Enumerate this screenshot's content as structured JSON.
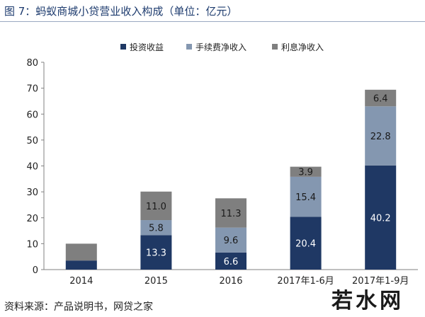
{
  "figure": {
    "title": "图 7：蚂蚁商城小贷营业收入构成（单位：亿元）",
    "source": "资料来源：产品说明书，网贷之家",
    "watermark": "若水网"
  },
  "chart_data": {
    "type": "bar",
    "stacked": true,
    "categories": [
      "2014",
      "2015",
      "2016",
      "2017年1-6月",
      "2017年1-9月"
    ],
    "series": [
      {
        "name": "投资收益",
        "color": "#1f3864",
        "values": [
          3.5,
          13.3,
          6.6,
          20.4,
          40.2
        ],
        "labels": [
          "",
          "13.3",
          "6.6",
          "20.4",
          "40.2"
        ]
      },
      {
        "name": "手续费净收入",
        "color": "#8497b0",
        "values": [
          0,
          5.8,
          9.6,
          15.4,
          22.8
        ],
        "labels": [
          "",
          "5.8",
          "9.6",
          "15.4",
          "22.8"
        ]
      },
      {
        "name": "利息净收入",
        "color": "#7f7f7f",
        "values": [
          6.5,
          11.0,
          11.3,
          3.9,
          6.4
        ],
        "labels": [
          "",
          "11.0",
          "11.3",
          "3.9",
          "6.4"
        ]
      }
    ],
    "ylim": [
      0,
      80
    ],
    "yticks": [
      0,
      10,
      20,
      30,
      40,
      50,
      60,
      70,
      80
    ],
    "grid": false,
    "legend_position": "top"
  }
}
